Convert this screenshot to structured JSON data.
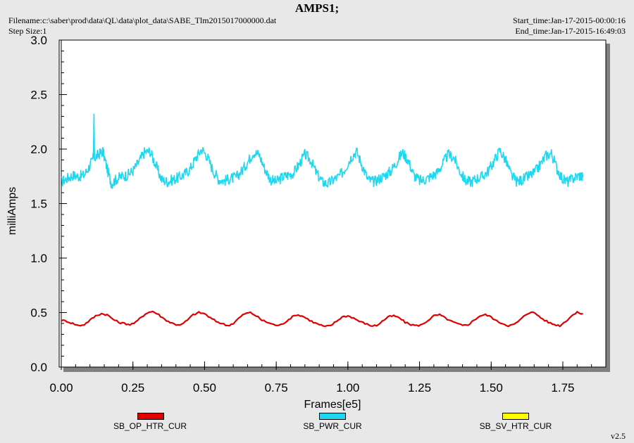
{
  "header": {
    "title": "AMPS1;",
    "filename": "Filename:c:\\saber\\prod\\data\\QL\\data\\plot_data\\SABE_Tlm2015017000000.dat",
    "step_size": "Step Size:1",
    "start_time": "Start_time:Jan-17-2015-00:00:16",
    "end_time": "End_time:Jan-17-2015-16:49:03",
    "version": "v2.5"
  },
  "legend": [
    {
      "label": "SB_OP_HTR_CUR",
      "color": "#e00000"
    },
    {
      "label": "SB_PWR_CUR",
      "color": "#1fd8f0"
    },
    {
      "label": "SB_SV_HTR_CUR",
      "color": "#ffff00"
    }
  ],
  "chart_data": {
    "type": "line",
    "title": "AMPS1;",
    "xlabel": "Frames[e5]",
    "ylabel": "milliAmps",
    "xlim": [
      0,
      1.9
    ],
    "ylim": [
      0,
      3.0
    ],
    "xticks": [
      "0.00",
      "0.25",
      "0.50",
      "0.75",
      "1.00",
      "1.25",
      "1.50",
      "1.75"
    ],
    "yticks": [
      "0.0",
      "0.5",
      "1.0",
      "1.5",
      "2.0",
      "2.5",
      "3.0"
    ],
    "grid": false,
    "series": [
      {
        "name": "SB_PWR_CUR",
        "color": "#1fd8f0",
        "x": [
          0.0,
          0.02,
          0.04,
          0.06,
          0.08,
          0.1,
          0.112,
          0.114,
          0.116,
          0.13,
          0.145,
          0.16,
          0.175,
          0.19,
          0.21,
          0.23,
          0.25,
          0.27,
          0.29,
          0.31,
          0.33,
          0.35,
          0.37,
          0.39,
          0.41,
          0.43,
          0.45,
          0.47,
          0.49,
          0.51,
          0.53,
          0.55,
          0.57,
          0.59,
          0.61,
          0.63,
          0.65,
          0.67,
          0.69,
          0.71,
          0.73,
          0.75,
          0.77,
          0.79,
          0.81,
          0.83,
          0.85,
          0.87,
          0.89,
          0.91,
          0.93,
          0.95,
          0.97,
          0.99,
          1.01,
          1.03,
          1.05,
          1.07,
          1.09,
          1.11,
          1.13,
          1.15,
          1.17,
          1.19,
          1.21,
          1.23,
          1.25,
          1.27,
          1.29,
          1.31,
          1.33,
          1.35,
          1.37,
          1.39,
          1.41,
          1.43,
          1.45,
          1.47,
          1.49,
          1.51,
          1.53,
          1.55,
          1.57,
          1.59,
          1.61,
          1.63,
          1.65,
          1.67,
          1.69,
          1.71,
          1.73,
          1.75,
          1.77,
          1.79,
          1.81,
          1.82
        ],
        "values": [
          1.7,
          1.73,
          1.76,
          1.75,
          1.76,
          1.85,
          1.92,
          2.32,
          1.92,
          1.95,
          1.98,
          1.82,
          1.68,
          1.72,
          1.75,
          1.76,
          1.8,
          1.88,
          1.97,
          1.98,
          1.85,
          1.72,
          1.7,
          1.72,
          1.74,
          1.77,
          1.82,
          1.92,
          2.0,
          1.93,
          1.8,
          1.72,
          1.71,
          1.73,
          1.74,
          1.8,
          1.88,
          1.97,
          1.95,
          1.82,
          1.72,
          1.7,
          1.74,
          1.76,
          1.78,
          1.86,
          1.95,
          1.9,
          1.78,
          1.7,
          1.68,
          1.72,
          1.75,
          1.82,
          1.92,
          1.98,
          1.85,
          1.72,
          1.7,
          1.73,
          1.76,
          1.8,
          1.88,
          1.97,
          1.9,
          1.76,
          1.71,
          1.72,
          1.75,
          1.78,
          1.86,
          1.95,
          1.92,
          1.8,
          1.71,
          1.7,
          1.73,
          1.75,
          1.8,
          1.89,
          1.99,
          1.9,
          1.76,
          1.7,
          1.72,
          1.75,
          1.78,
          1.85,
          1.94,
          1.96,
          1.82,
          1.72,
          1.7,
          1.74,
          1.76,
          1.74
        ]
      },
      {
        "name": "SB_OP_HTR_CUR",
        "color": "#e00000",
        "x": [
          0.0,
          0.02,
          0.04,
          0.06,
          0.08,
          0.1,
          0.12,
          0.14,
          0.16,
          0.18,
          0.2,
          0.22,
          0.24,
          0.26,
          0.28,
          0.3,
          0.32,
          0.34,
          0.36,
          0.38,
          0.4,
          0.42,
          0.44,
          0.46,
          0.48,
          0.5,
          0.52,
          0.54,
          0.56,
          0.58,
          0.6,
          0.62,
          0.64,
          0.66,
          0.68,
          0.7,
          0.72,
          0.74,
          0.76,
          0.78,
          0.8,
          0.82,
          0.84,
          0.86,
          0.88,
          0.9,
          0.92,
          0.94,
          0.96,
          0.98,
          1.0,
          1.02,
          1.04,
          1.06,
          1.08,
          1.1,
          1.12,
          1.14,
          1.16,
          1.18,
          1.2,
          1.22,
          1.24,
          1.26,
          1.28,
          1.3,
          1.32,
          1.34,
          1.36,
          1.38,
          1.4,
          1.42,
          1.44,
          1.46,
          1.48,
          1.5,
          1.52,
          1.54,
          1.56,
          1.58,
          1.6,
          1.62,
          1.64,
          1.66,
          1.68,
          1.7,
          1.72,
          1.74,
          1.76,
          1.78,
          1.8,
          1.82
        ],
        "values": [
          0.43,
          0.42,
          0.4,
          0.38,
          0.39,
          0.43,
          0.47,
          0.49,
          0.48,
          0.44,
          0.41,
          0.4,
          0.39,
          0.41,
          0.46,
          0.5,
          0.51,
          0.48,
          0.44,
          0.41,
          0.39,
          0.39,
          0.43,
          0.48,
          0.5,
          0.49,
          0.45,
          0.42,
          0.4,
          0.38,
          0.4,
          0.45,
          0.49,
          0.5,
          0.47,
          0.43,
          0.41,
          0.39,
          0.38,
          0.41,
          0.45,
          0.48,
          0.47,
          0.44,
          0.41,
          0.39,
          0.37,
          0.38,
          0.42,
          0.46,
          0.47,
          0.45,
          0.42,
          0.4,
          0.38,
          0.38,
          0.42,
          0.46,
          0.47,
          0.45,
          0.41,
          0.39,
          0.38,
          0.39,
          0.43,
          0.47,
          0.48,
          0.45,
          0.42,
          0.4,
          0.38,
          0.39,
          0.43,
          0.47,
          0.48,
          0.46,
          0.42,
          0.4,
          0.38,
          0.39,
          0.43,
          0.48,
          0.51,
          0.48,
          0.44,
          0.41,
          0.39,
          0.38,
          0.42,
          0.47,
          0.5,
          0.49
        ]
      }
    ]
  }
}
